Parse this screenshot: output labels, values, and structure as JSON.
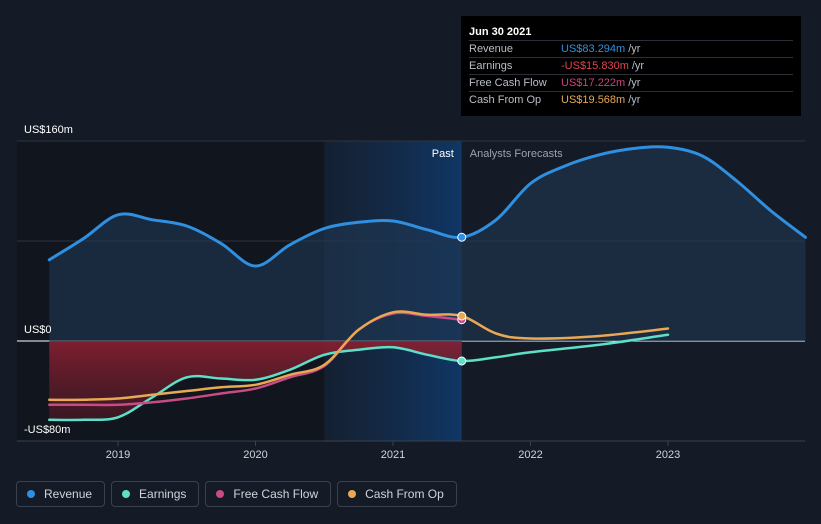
{
  "tooltip": {
    "date": "Jun 30 2021",
    "rows": [
      {
        "label": "Revenue",
        "value": "US$83.294m",
        "unit": "/yr",
        "color": "#2f8fe0"
      },
      {
        "label": "Earnings",
        "value": "-US$15.830m",
        "unit": "/yr",
        "color": "#e0454f"
      },
      {
        "label": "Free Cash Flow",
        "value": "US$17.222m",
        "unit": "/yr",
        "color": "#d0407e"
      },
      {
        "label": "Cash From Op",
        "value": "US$19.568m",
        "unit": "/yr",
        "color": "#e8a854"
      }
    ]
  },
  "periods": {
    "past": "Past",
    "forecast": "Analysts Forecasts"
  },
  "legend": [
    {
      "label": "Revenue",
      "color": "#2f8fe0"
    },
    {
      "label": "Earnings",
      "color": "#5ee0c8"
    },
    {
      "label": "Free Cash Flow",
      "color": "#c94a86"
    },
    {
      "label": "Cash From Op",
      "color": "#e8a854"
    }
  ],
  "chart_data": {
    "type": "line",
    "title": "",
    "xlabel": "",
    "ylabel": "",
    "ylim": [
      -80,
      160
    ],
    "y_tick_labels": [
      "US$160m",
      "US$0",
      "-US$80m"
    ],
    "y_tick_values": [
      160,
      0,
      -80
    ],
    "x_tick_labels": [
      "2019",
      "2020",
      "2021",
      "2022",
      "2023"
    ],
    "x_tick_values": [
      2019,
      2020,
      2021,
      2022,
      2023
    ],
    "xlim": [
      2018.25,
      2024.0
    ],
    "past_forecast_split": 2021.5,
    "highlight_range": [
      2020.5,
      2021.5
    ],
    "grid": true,
    "legend_position": "bottom-left",
    "series": [
      {
        "name": "Revenue",
        "color": "#2f8fe0",
        "x": [
          2018.5,
          2018.75,
          2019.0,
          2019.25,
          2019.5,
          2019.75,
          2020.0,
          2020.25,
          2020.5,
          2020.75,
          2021.0,
          2021.25,
          2021.5,
          2021.75,
          2022.0,
          2022.25,
          2022.5,
          2022.75,
          2023.0,
          2023.25,
          2023.5,
          2023.75,
          2024.0
        ],
        "y": [
          65,
          82,
          101,
          97,
          92,
          78,
          60,
          77,
          90,
          95,
          96,
          89,
          83,
          97,
          126,
          140,
          149,
          154,
          155,
          148,
          128,
          104,
          83
        ]
      },
      {
        "name": "Earnings",
        "color": "#5ee0c8",
        "x": [
          2018.5,
          2018.75,
          2019.0,
          2019.25,
          2019.5,
          2019.75,
          2020.0,
          2020.25,
          2020.5,
          2020.75,
          2021.0,
          2021.25,
          2021.5,
          2021.75,
          2022.0,
          2022.5,
          2023.0
        ],
        "y": [
          -63,
          -63,
          -61,
          -45,
          -29,
          -30,
          -31,
          -23,
          -11,
          -7,
          -5,
          -11,
          -16,
          -13,
          -9,
          -3,
          5
        ]
      },
      {
        "name": "Free Cash Flow",
        "color": "#c94a86",
        "x": [
          2018.5,
          2018.75,
          2019.0,
          2019.25,
          2019.5,
          2019.75,
          2020.0,
          2020.25,
          2020.5,
          2020.75,
          2021.0,
          2021.25,
          2021.5
        ],
        "y": [
          -51,
          -51,
          -51,
          -49,
          -46,
          -42,
          -38,
          -29,
          -20,
          9,
          22,
          20,
          17
        ]
      },
      {
        "name": "Cash From Op",
        "color": "#e8a854",
        "x": [
          2018.5,
          2018.75,
          2019.0,
          2019.25,
          2019.5,
          2019.75,
          2020.0,
          2020.25,
          2020.5,
          2020.75,
          2021.0,
          2021.25,
          2021.5,
          2021.75,
          2022.0,
          2022.5,
          2023.0
        ],
        "y": [
          -47,
          -47,
          -46,
          -43,
          -40,
          -37,
          -35,
          -27,
          -19,
          9,
          23,
          21,
          20,
          6,
          2,
          4,
          10
        ]
      }
    ],
    "markers": [
      {
        "series": "Revenue",
        "x": 2021.5,
        "y": 83
      },
      {
        "series": "Earnings",
        "x": 2021.5,
        "y": -16
      },
      {
        "series": "Free Cash Flow",
        "x": 2021.5,
        "y": 17
      },
      {
        "series": "Cash From Op",
        "x": 2021.5,
        "y": 20
      }
    ]
  }
}
